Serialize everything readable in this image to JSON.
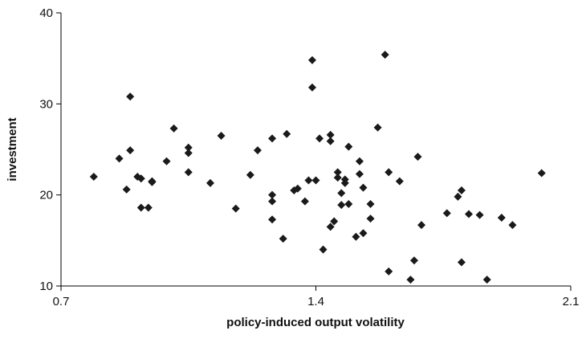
{
  "chart_data": {
    "type": "scatter",
    "title": "",
    "xlabel": "policy-induced output volatility",
    "ylabel": "investment",
    "xlim": [
      0.7,
      2.1
    ],
    "ylim": [
      10,
      40
    ],
    "xticks": [
      "0.7",
      "1.4",
      "2.1"
    ],
    "yticks": [
      "10",
      "20",
      "30",
      "40"
    ],
    "grid": false,
    "legend": "none",
    "marker": "diamond",
    "marker_color": "#1a1a1a",
    "series": [
      {
        "points": [
          [
            0.79,
            22.0
          ],
          [
            0.86,
            24.0
          ],
          [
            0.88,
            20.6
          ],
          [
            0.89,
            30.8
          ],
          [
            0.89,
            24.9
          ],
          [
            0.91,
            22.0
          ],
          [
            0.92,
            21.8
          ],
          [
            0.92,
            18.6
          ],
          [
            0.94,
            18.6
          ],
          [
            0.95,
            21.5
          ],
          [
            0.95,
            21.4
          ],
          [
            0.99,
            23.7
          ],
          [
            1.01,
            27.3
          ],
          [
            1.05,
            25.2
          ],
          [
            1.05,
            24.6
          ],
          [
            1.05,
            22.5
          ],
          [
            1.11,
            21.3
          ],
          [
            1.14,
            26.5
          ],
          [
            1.18,
            18.5
          ],
          [
            1.22,
            22.2
          ],
          [
            1.24,
            24.9
          ],
          [
            1.28,
            26.2
          ],
          [
            1.28,
            20.0
          ],
          [
            1.28,
            19.3
          ],
          [
            1.28,
            17.3
          ],
          [
            1.31,
            15.2
          ],
          [
            1.32,
            26.7
          ],
          [
            1.34,
            20.5
          ],
          [
            1.35,
            20.7
          ],
          [
            1.37,
            19.3
          ],
          [
            1.38,
            21.6
          ],
          [
            1.39,
            34.8
          ],
          [
            1.39,
            31.8
          ],
          [
            1.4,
            21.6
          ],
          [
            1.41,
            26.2
          ],
          [
            1.42,
            14.0
          ],
          [
            1.44,
            25.9
          ],
          [
            1.44,
            26.6
          ],
          [
            1.44,
            16.5
          ],
          [
            1.45,
            17.1
          ],
          [
            1.46,
            22.5
          ],
          [
            1.46,
            21.9
          ],
          [
            1.47,
            20.2
          ],
          [
            1.47,
            18.9
          ],
          [
            1.48,
            21.7
          ],
          [
            1.48,
            21.3
          ],
          [
            1.49,
            19.0
          ],
          [
            1.49,
            25.3
          ],
          [
            1.51,
            15.4
          ],
          [
            1.52,
            23.7
          ],
          [
            1.52,
            22.3
          ],
          [
            1.53,
            20.8
          ],
          [
            1.53,
            15.8
          ],
          [
            1.55,
            17.4
          ],
          [
            1.55,
            19.0
          ],
          [
            1.57,
            27.4
          ],
          [
            1.59,
            35.4
          ],
          [
            1.6,
            22.5
          ],
          [
            1.6,
            11.6
          ],
          [
            1.63,
            21.5
          ],
          [
            1.66,
            10.7
          ],
          [
            1.67,
            12.8
          ],
          [
            1.68,
            24.2
          ],
          [
            1.69,
            16.7
          ],
          [
            1.76,
            18.0
          ],
          [
            1.79,
            19.8
          ],
          [
            1.8,
            20.5
          ],
          [
            1.8,
            12.6
          ],
          [
            1.82,
            17.9
          ],
          [
            1.85,
            17.8
          ],
          [
            1.87,
            10.7
          ],
          [
            1.91,
            17.5
          ],
          [
            1.94,
            16.7
          ],
          [
            2.02,
            22.4
          ]
        ]
      }
    ]
  }
}
